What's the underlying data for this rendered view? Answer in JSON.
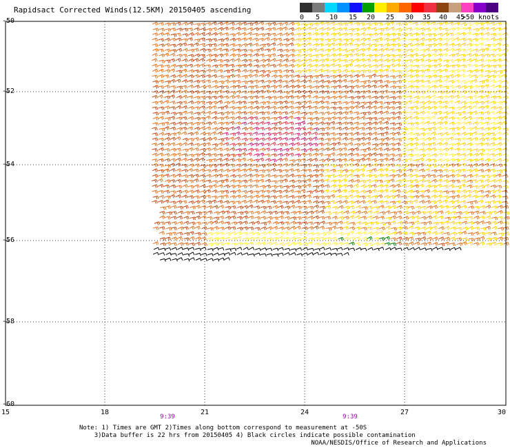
{
  "title": "Rapidsact Corrected Winds(12.5KM) 20150405 ascending",
  "legend": {
    "colors": [
      "#2f2f2f",
      "#7a7a7a",
      "#00d8ff",
      "#0090ff",
      "#1010ff",
      "#00a000",
      "#ffee00",
      "#ffaa00",
      "#ff6600",
      "#ff0000",
      "#ee3040",
      "#8b4513",
      "#c8a080",
      "#ff40c0",
      "#8800cc",
      "#4b0082"
    ],
    "ticks": [
      "0",
      "5",
      "10",
      "15",
      "20",
      "25",
      "30",
      "35",
      "40",
      "45",
      ">50 knots"
    ]
  },
  "axes": {
    "y_labels": [
      "-50",
      "-52",
      "-54",
      "-56",
      "-58",
      "-60"
    ],
    "x_labels": [
      "15",
      "18",
      "21",
      "24",
      "27",
      "30"
    ],
    "lat_range": [
      -60,
      -50
    ],
    "lon_range": [
      15,
      30
    ]
  },
  "times": [
    "9:39",
    "9:39"
  ],
  "notes": {
    "line1": "Note: 1) Times are GMT 2)Times along bottom correspond to measurement at -50S",
    "line2": "3)Data buffer is 22 hrs from 20150405 4) Black circles indicate possible contamination"
  },
  "credit": "NOAA/NESDIS/Office of Research and Applications"
}
